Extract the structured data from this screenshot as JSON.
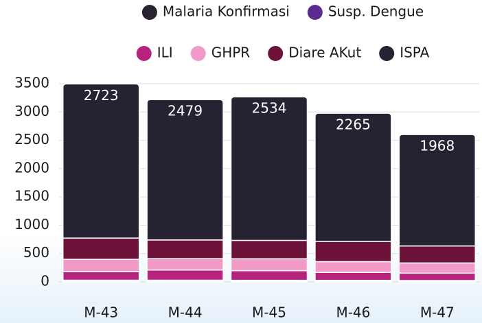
{
  "chart_data": {
    "type": "stacked_bar",
    "categories": [
      "M-43",
      "M-44",
      "M-45",
      "M-46",
      "M-47"
    ],
    "series": [
      {
        "name": "Malaria Konfirmasi",
        "color": "#29232f",
        "values": [
          10,
          10,
          10,
          10,
          10
        ]
      },
      {
        "name": "Susp. Dengue",
        "color": "#5b2c8f",
        "values": [
          20,
          20,
          18,
          17,
          14
        ]
      },
      {
        "name": "ILI",
        "color": "#b5237f",
        "values": [
          150,
          180,
          170,
          140,
          130
        ]
      },
      {
        "name": "GHPR",
        "color": "#f19ac8",
        "values": [
          218,
          200,
          210,
          190,
          180
        ]
      },
      {
        "name": "Diare AKut",
        "color": "#6d1238",
        "values": [
          375,
          330,
          325,
          355,
          300
        ]
      },
      {
        "name": "ISPA",
        "color": "#272232",
        "values": [
          2723,
          2479,
          2534,
          2265,
          1968
        ]
      }
    ],
    "ylim": [
      0,
      3500
    ],
    "yticks": [
      0,
      500,
      1000,
      1500,
      2000,
      2500,
      3000,
      3500
    ],
    "grid": true
  }
}
